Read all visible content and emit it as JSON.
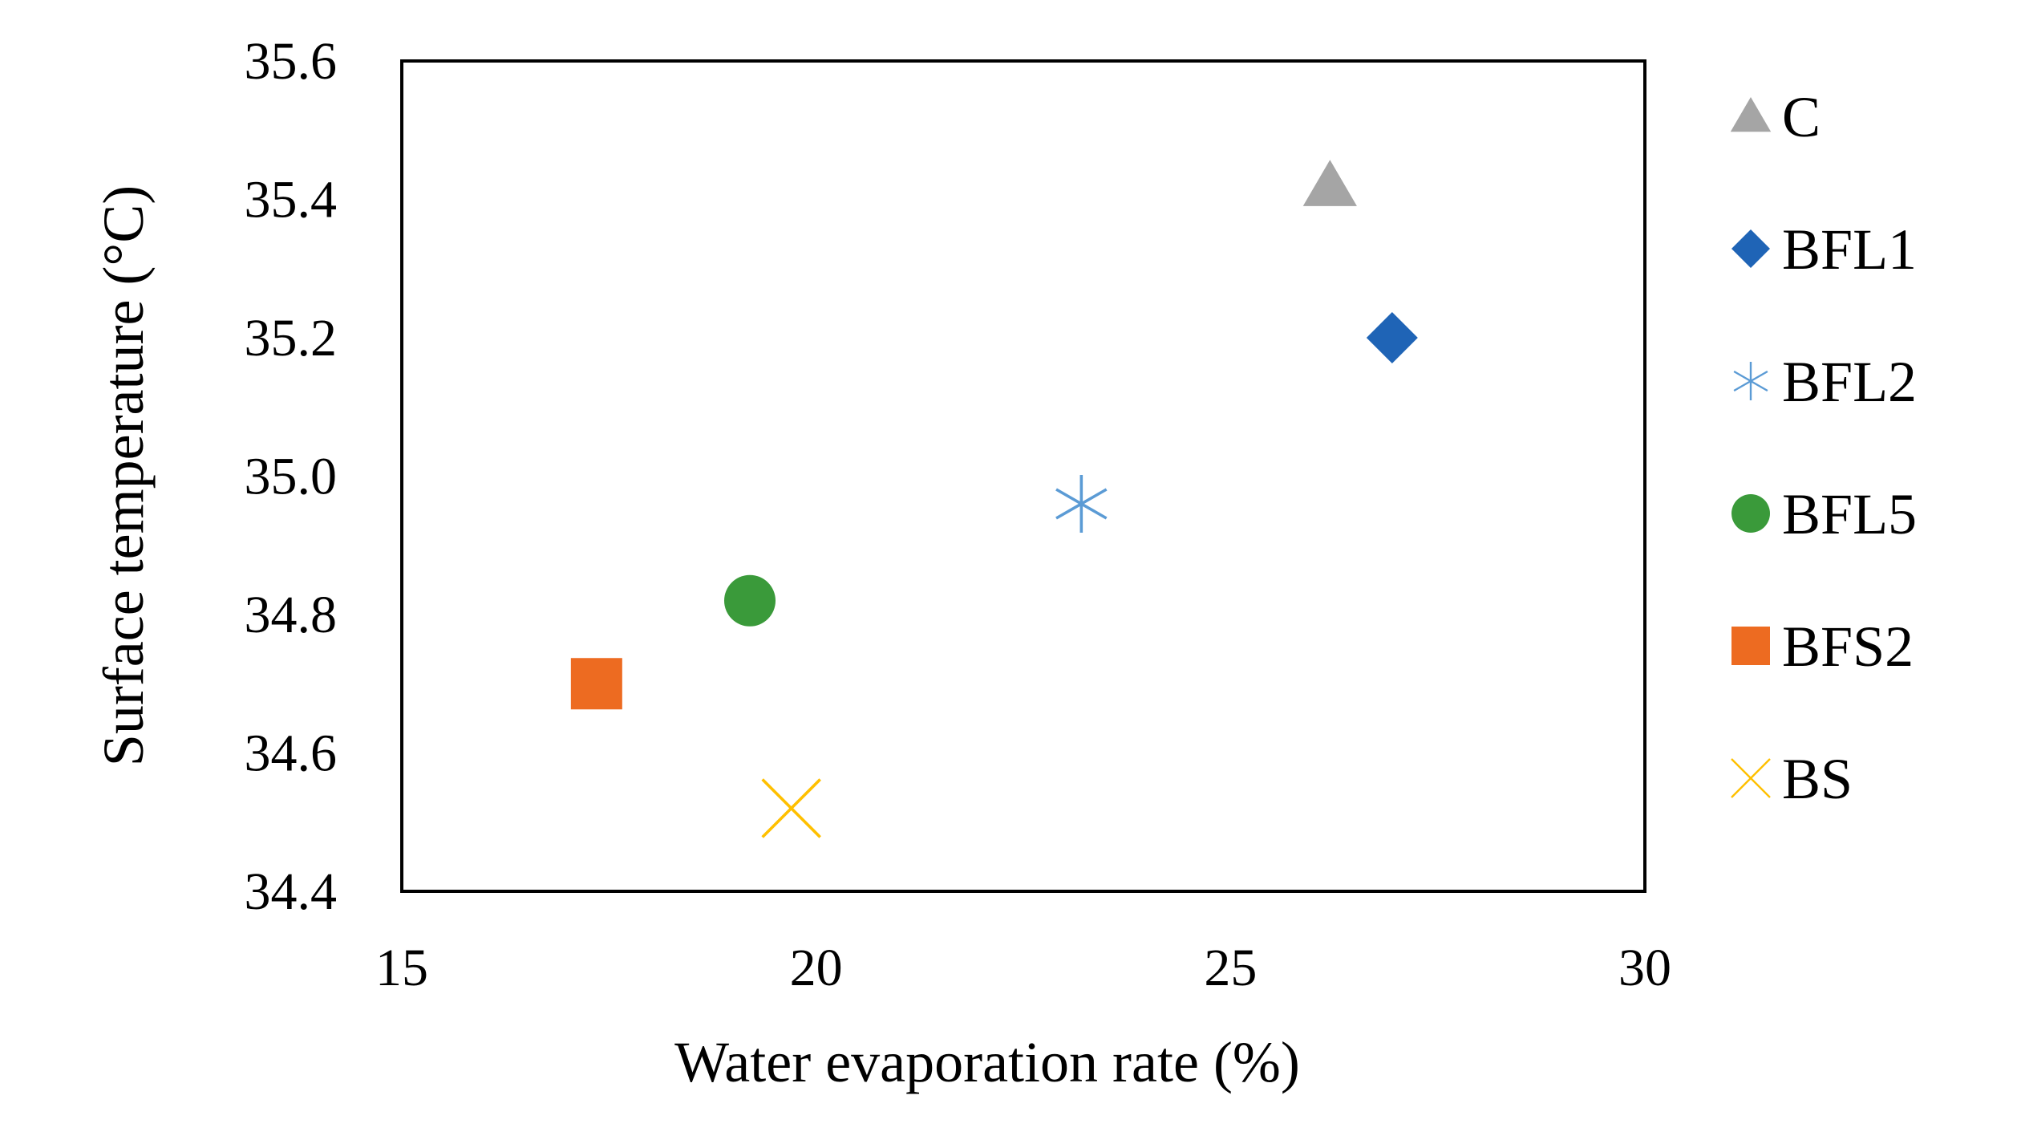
{
  "chart_data": {
    "type": "scatter",
    "title": "",
    "xlabel": "Water evaporation rate (%)",
    "ylabel": "Surface temperature (°C)",
    "xlim": [
      15,
      30
    ],
    "ylim": [
      34.4,
      35.6
    ],
    "xticks": [
      15,
      20,
      25,
      30
    ],
    "yticks": [
      34.4,
      34.6,
      34.8,
      35.0,
      35.2,
      35.4,
      35.6
    ],
    "xtick_labels": [
      "15",
      "20",
      "25",
      "30"
    ],
    "ytick_labels": [
      "34.4",
      "34.6",
      "34.8",
      "35.0",
      "35.2",
      "35.4",
      "35.6"
    ],
    "grid": false,
    "legend_position": "right",
    "series": [
      {
        "name": "C",
        "marker": "triangle",
        "color": "#a5a5a5",
        "x": 26.2,
        "y": 35.42
      },
      {
        "name": "BFL1",
        "marker": "diamond",
        "color": "#1f64b6",
        "x": 26.95,
        "y": 35.2
      },
      {
        "name": "BFL2",
        "marker": "asterisk",
        "color": "#5b9bd5",
        "x": 23.2,
        "y": 34.96
      },
      {
        "name": "BFL5",
        "marker": "circle",
        "color": "#3a9a3a",
        "x": 19.2,
        "y": 34.82
      },
      {
        "name": "BFS2",
        "marker": "square",
        "color": "#ed6b21",
        "x": 17.35,
        "y": 34.7
      },
      {
        "name": "BS",
        "marker": "x",
        "color": "#ffc000",
        "x": 19.7,
        "y": 34.52
      }
    ]
  }
}
